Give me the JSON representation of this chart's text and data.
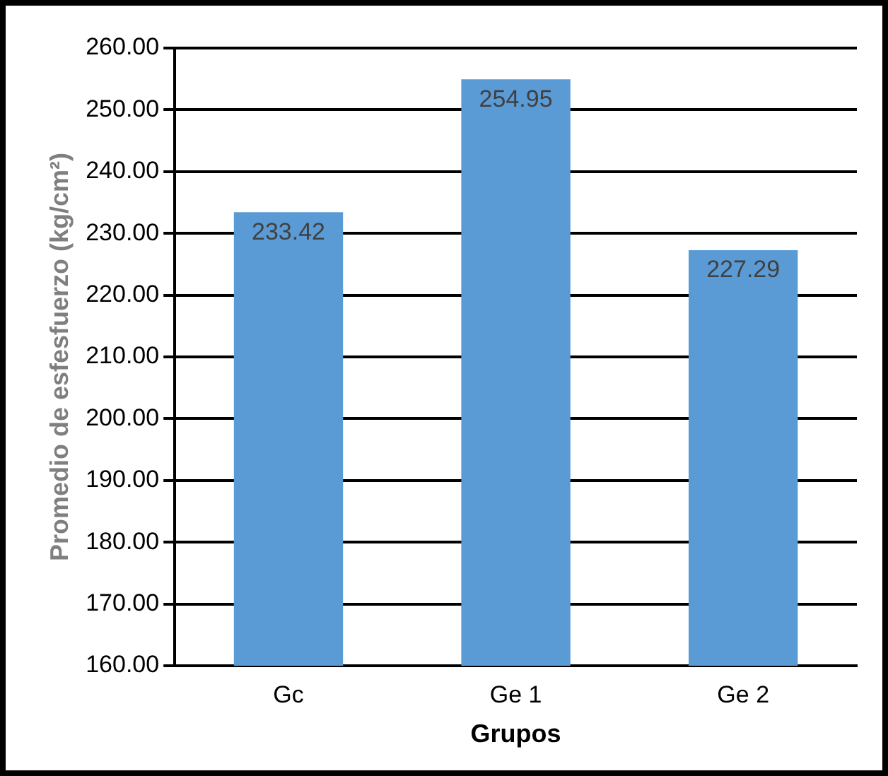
{
  "chart_data": {
    "type": "bar",
    "ylabel": "Promedio de esfesfuerzo (kg/cm²)",
    "xlabel": "Grupos",
    "categories": [
      "Gc",
      "Ge 1",
      "Ge 2"
    ],
    "values": [
      233.42,
      254.95,
      227.29
    ],
    "color": "#5b9bd5",
    "ylim": [
      160,
      260
    ],
    "yticks": [
      {
        "value": 160,
        "label": "160.00"
      },
      {
        "value": 170,
        "label": "170.00"
      },
      {
        "value": 180,
        "label": "180.00"
      },
      {
        "value": 190,
        "label": "190.00"
      },
      {
        "value": 200,
        "label": "200.00"
      },
      {
        "value": 210,
        "label": "210.00"
      },
      {
        "value": 220,
        "label": "220.00"
      },
      {
        "value": 230,
        "label": "230.00"
      },
      {
        "value": 240,
        "label": "240.00"
      },
      {
        "value": 250,
        "label": "250.00"
      },
      {
        "value": 260,
        "label": "260.00"
      }
    ],
    "grid": "y",
    "data_labels": true
  }
}
